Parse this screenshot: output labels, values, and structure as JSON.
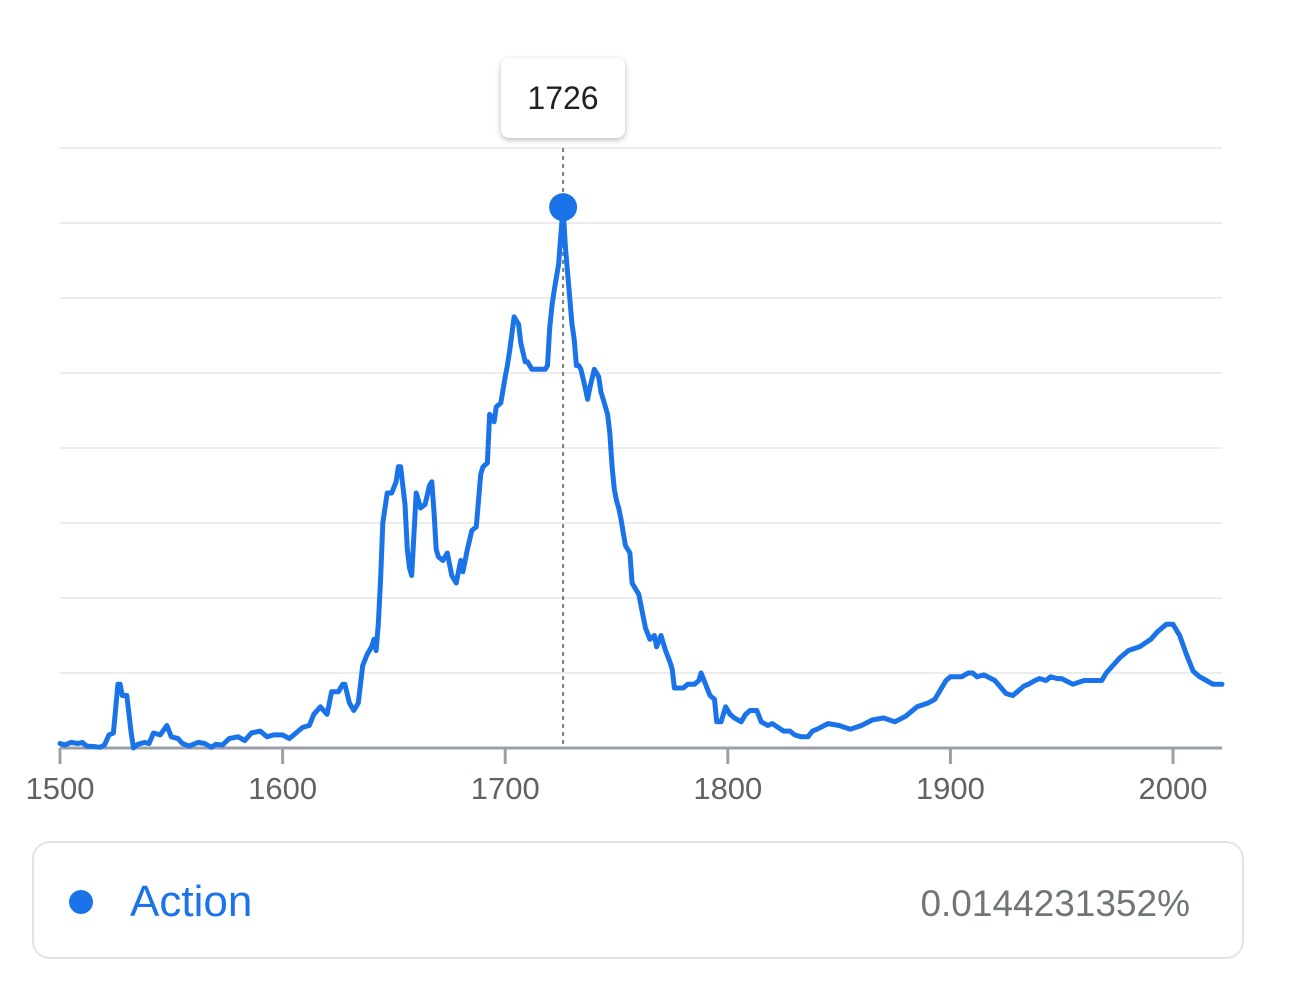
{
  "accent_color": "#1a73e8",
  "tooltip": {
    "year": "1726"
  },
  "legend": {
    "series_name": "Action",
    "value": "0.0144231352%"
  },
  "chart_data": {
    "type": "line",
    "title": "",
    "xlabel": "",
    "ylabel": "",
    "xlim": [
      1500,
      2022
    ],
    "ylim": [
      0,
      0.016
    ],
    "x_ticks": [
      "1500",
      "1600",
      "1700",
      "1800",
      "1900",
      "2000"
    ],
    "grid": "horizontal",
    "gridline_count": 8,
    "highlight": {
      "x": 1726,
      "y": 0.0144231352
    },
    "series": [
      {
        "name": "Action",
        "color": "#1a73e8",
        "points": [
          [
            1500,
            0.00012
          ],
          [
            1502,
            8e-05
          ],
          [
            1505,
            0.00015
          ],
          [
            1508,
            0.00012
          ],
          [
            1510,
            0.00015
          ],
          [
            1512,
            5e-05
          ],
          [
            1515,
            4e-05
          ],
          [
            1518,
            2e-05
          ],
          [
            1520,
            8e-05
          ],
          [
            1522,
            0.00035
          ],
          [
            1524,
            0.0004
          ],
          [
            1526,
            0.0017
          ],
          [
            1527,
            0.0017
          ],
          [
            1528,
            0.0014
          ],
          [
            1530,
            0.0014
          ],
          [
            1531,
            0.0009
          ],
          [
            1532,
            0.0004
          ],
          [
            1533,
            0.0
          ],
          [
            1535,
            0.0001
          ],
          [
            1538,
            0.00015
          ],
          [
            1540,
            0.00012
          ],
          [
            1542,
            0.0004
          ],
          [
            1545,
            0.00035
          ],
          [
            1548,
            0.0006
          ],
          [
            1550,
            0.0003
          ],
          [
            1553,
            0.00025
          ],
          [
            1555,
            0.00012
          ],
          [
            1558,
            5e-05
          ],
          [
            1562,
            0.00015
          ],
          [
            1565,
            0.00012
          ],
          [
            1568,
            2e-05
          ],
          [
            1570,
            0.0001
          ],
          [
            1573,
            8e-05
          ],
          [
            1576,
            0.00025
          ],
          [
            1580,
            0.0003
          ],
          [
            1583,
            0.0002
          ],
          [
            1586,
            0.0004
          ],
          [
            1590,
            0.00045
          ],
          [
            1593,
            0.0003
          ],
          [
            1596,
            0.00035
          ],
          [
            1600,
            0.00035
          ],
          [
            1603,
            0.00025
          ],
          [
            1606,
            0.0004
          ],
          [
            1609,
            0.00055
          ],
          [
            1612,
            0.0006
          ],
          [
            1614,
            0.0009
          ],
          [
            1617,
            0.0011
          ],
          [
            1620,
            0.0009
          ],
          [
            1622,
            0.0015
          ],
          [
            1625,
            0.0015
          ],
          [
            1627,
            0.0017
          ],
          [
            1628,
            0.0017
          ],
          [
            1630,
            0.0012
          ],
          [
            1632,
            0.001
          ],
          [
            1634,
            0.0012
          ],
          [
            1636,
            0.0022
          ],
          [
            1638,
            0.0025
          ],
          [
            1640,
            0.0027
          ],
          [
            1641,
            0.0029
          ],
          [
            1642,
            0.0026
          ],
          [
            1643,
            0.0033
          ],
          [
            1644,
            0.0045
          ],
          [
            1645,
            0.006
          ],
          [
            1647,
            0.0068
          ],
          [
            1649,
            0.0068
          ],
          [
            1651,
            0.0071
          ],
          [
            1652,
            0.0075
          ],
          [
            1653,
            0.0075
          ],
          [
            1655,
            0.0065
          ],
          [
            1656,
            0.0053
          ],
          [
            1657,
            0.0048
          ],
          [
            1658,
            0.0046
          ],
          [
            1660,
            0.0068
          ],
          [
            1662,
            0.0064
          ],
          [
            1664,
            0.0065
          ],
          [
            1666,
            0.007
          ],
          [
            1667,
            0.0071
          ],
          [
            1668,
            0.0063
          ],
          [
            1669,
            0.0053
          ],
          [
            1670,
            0.0051
          ],
          [
            1672,
            0.005
          ],
          [
            1673,
            0.0051
          ],
          [
            1674,
            0.0052
          ],
          [
            1676,
            0.0046
          ],
          [
            1678,
            0.0044
          ],
          [
            1680,
            0.005
          ],
          [
            1681,
            0.0047
          ],
          [
            1683,
            0.0053
          ],
          [
            1685,
            0.0058
          ],
          [
            1687,
            0.0059
          ],
          [
            1688,
            0.0066
          ],
          [
            1689,
            0.0073
          ],
          [
            1690,
            0.0075
          ],
          [
            1692,
            0.0076
          ],
          [
            1693,
            0.0089
          ],
          [
            1695,
            0.0087
          ],
          [
            1696,
            0.0091
          ],
          [
            1698,
            0.0092
          ],
          [
            1700,
            0.0099
          ],
          [
            1701,
            0.0102
          ],
          [
            1702,
            0.0106
          ],
          [
            1704,
            0.0115
          ],
          [
            1705,
            0.0114
          ],
          [
            1706,
            0.0113
          ],
          [
            1707,
            0.0108
          ],
          [
            1709,
            0.0103
          ],
          [
            1710,
            0.0103
          ],
          [
            1712,
            0.0101
          ],
          [
            1714,
            0.0101
          ],
          [
            1716,
            0.0101
          ],
          [
            1718,
            0.0101
          ],
          [
            1719,
            0.0102
          ],
          [
            1720,
            0.0112
          ],
          [
            1721,
            0.0118
          ],
          [
            1722,
            0.0122
          ],
          [
            1724,
            0.0129
          ],
          [
            1725,
            0.0137
          ],
          [
            1726,
            0.0144231352
          ],
          [
            1727,
            0.0134
          ],
          [
            1728,
            0.0127
          ],
          [
            1730,
            0.0113
          ],
          [
            1731,
            0.0109
          ],
          [
            1732,
            0.0102
          ],
          [
            1733,
            0.0102
          ],
          [
            1734,
            0.0101
          ],
          [
            1736,
            0.0096
          ],
          [
            1737,
            0.0093
          ],
          [
            1738,
            0.0096
          ],
          [
            1740,
            0.0101
          ],
          [
            1742,
            0.0099
          ],
          [
            1743,
            0.0095
          ],
          [
            1744,
            0.0093
          ],
          [
            1746,
            0.0089
          ],
          [
            1747,
            0.0084
          ],
          [
            1748,
            0.0075
          ],
          [
            1749,
            0.0069
          ],
          [
            1750,
            0.0066
          ],
          [
            1751,
            0.0064
          ],
          [
            1752,
            0.0061
          ],
          [
            1754,
            0.0054
          ],
          [
            1756,
            0.0052
          ],
          [
            1757,
            0.0044
          ],
          [
            1759,
            0.0042
          ],
          [
            1760,
            0.0041
          ],
          [
            1762,
            0.0035
          ],
          [
            1763,
            0.0032
          ],
          [
            1765,
            0.0029
          ],
          [
            1767,
            0.003
          ],
          [
            1768,
            0.0027
          ],
          [
            1770,
            0.003
          ],
          [
            1772,
            0.0026
          ],
          [
            1774,
            0.0023
          ],
          [
            1775,
            0.0021
          ],
          [
            1776,
            0.0016
          ],
          [
            1780,
            0.0016
          ],
          [
            1782,
            0.0017
          ],
          [
            1785,
            0.0017
          ],
          [
            1787,
            0.0018
          ],
          [
            1788,
            0.002
          ],
          [
            1790,
            0.0017
          ],
          [
            1792,
            0.0014
          ],
          [
            1794,
            0.0013
          ],
          [
            1795,
            0.0007
          ],
          [
            1797,
            0.0007
          ],
          [
            1799,
            0.0011
          ],
          [
            1801,
            0.0009
          ],
          [
            1803,
            0.0008
          ],
          [
            1806,
            0.0007
          ],
          [
            1808,
            0.0009
          ],
          [
            1810,
            0.001
          ],
          [
            1813,
            0.001
          ],
          [
            1815,
            0.0007
          ],
          [
            1818,
            0.0006
          ],
          [
            1820,
            0.00065
          ],
          [
            1825,
            0.00045
          ],
          [
            1828,
            0.00045
          ],
          [
            1830,
            0.00035
          ],
          [
            1833,
            0.0003
          ],
          [
            1836,
            0.0003
          ],
          [
            1838,
            0.00045
          ],
          [
            1840,
            0.0005
          ],
          [
            1845,
            0.00065
          ],
          [
            1850,
            0.0006
          ],
          [
            1855,
            0.0005
          ],
          [
            1860,
            0.0006
          ],
          [
            1865,
            0.00075
          ],
          [
            1870,
            0.0008
          ],
          [
            1875,
            0.0007
          ],
          [
            1880,
            0.00085
          ],
          [
            1885,
            0.0011
          ],
          [
            1890,
            0.0012
          ],
          [
            1893,
            0.0013
          ],
          [
            1895,
            0.0015
          ],
          [
            1898,
            0.0018
          ],
          [
            1900,
            0.0019
          ],
          [
            1903,
            0.0019
          ],
          [
            1905,
            0.0019
          ],
          [
            1908,
            0.002
          ],
          [
            1910,
            0.002
          ],
          [
            1912,
            0.0019
          ],
          [
            1915,
            0.00195
          ],
          [
            1920,
            0.0018
          ],
          [
            1925,
            0.00145
          ],
          [
            1928,
            0.0014
          ],
          [
            1930,
            0.0015
          ],
          [
            1933,
            0.00165
          ],
          [
            1935,
            0.0017
          ],
          [
            1938,
            0.0018
          ],
          [
            1940,
            0.00185
          ],
          [
            1943,
            0.0018
          ],
          [
            1945,
            0.0019
          ],
          [
            1948,
            0.00185
          ],
          [
            1950,
            0.00185
          ],
          [
            1955,
            0.0017
          ],
          [
            1960,
            0.0018
          ],
          [
            1965,
            0.0018
          ],
          [
            1968,
            0.0018
          ],
          [
            1970,
            0.002
          ],
          [
            1973,
            0.0022
          ],
          [
            1976,
            0.0024
          ],
          [
            1980,
            0.0026
          ],
          [
            1985,
            0.0027
          ],
          [
            1990,
            0.0029
          ],
          [
            1993,
            0.0031
          ],
          [
            1997,
            0.0033
          ],
          [
            2000,
            0.0033
          ],
          [
            2003,
            0.003
          ],
          [
            2006,
            0.0025
          ],
          [
            2009,
            0.00205
          ],
          [
            2012,
            0.0019
          ],
          [
            2015,
            0.0018
          ],
          [
            2018,
            0.0017
          ],
          [
            2022,
            0.0017
          ]
        ]
      }
    ]
  }
}
